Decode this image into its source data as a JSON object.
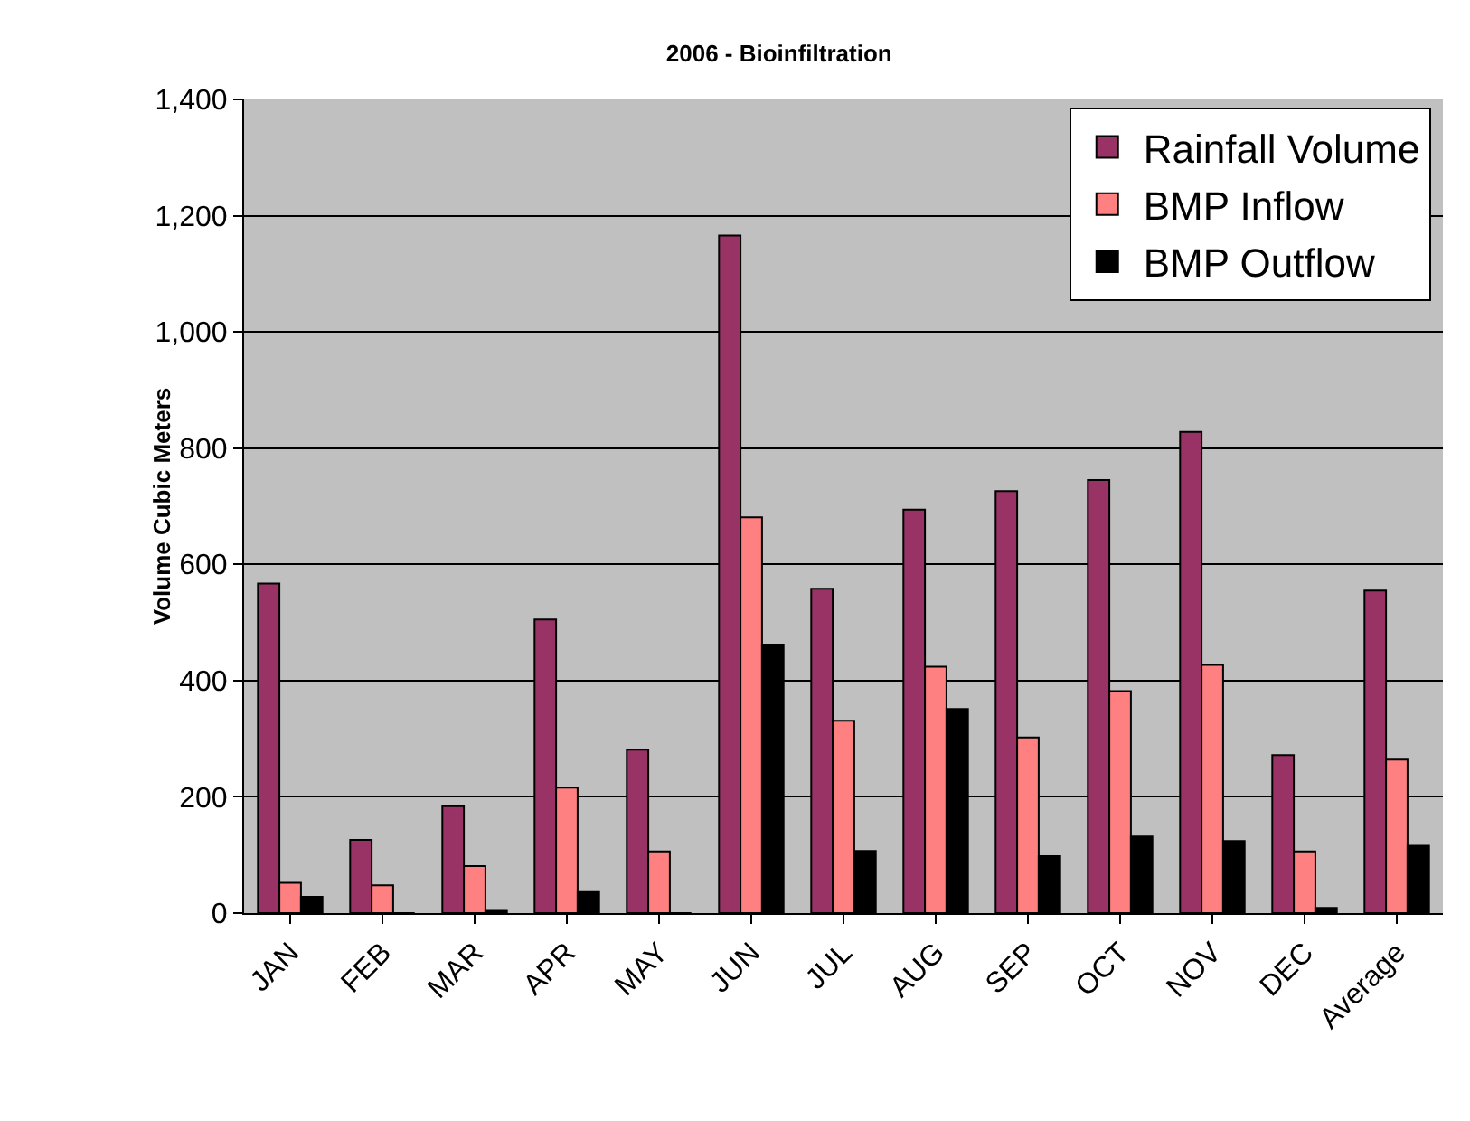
{
  "chart_data": {
    "type": "bar",
    "title": "2006 - Bioinfiltration",
    "ylabel": "Volume Cubic Meters",
    "categories": [
      "JAN",
      "FEB",
      "MAR",
      "APR",
      "MAY",
      "JUN",
      "JUL",
      "AUG",
      "SEP",
      "OCT",
      "NOV",
      "DEC",
      "Average"
    ],
    "series": [
      {
        "name": "Rainfall Volume",
        "color": "#993366",
        "values": [
          567,
          126,
          184,
          505,
          281,
          1166,
          558,
          694,
          726,
          745,
          828,
          272,
          555
        ]
      },
      {
        "name": "BMP Inflow",
        "color": "#ff8080",
        "values": [
          52,
          48,
          81,
          216,
          106,
          681,
          331,
          424,
          302,
          382,
          427,
          106,
          264
        ]
      },
      {
        "name": "BMP Outflow",
        "color": "#000000",
        "values": [
          28,
          0,
          4,
          36,
          0,
          462,
          107,
          351,
          98,
          132,
          124,
          9,
          116
        ]
      }
    ],
    "ylim": [
      0,
      1400
    ],
    "yticks": [
      0,
      {
        "value": 200,
        "label": "200"
      },
      {
        "value": 400,
        "label": "400"
      },
      {
        "value": 600,
        "label": "600"
      },
      {
        "value": 800,
        "label": "800"
      },
      {
        "value": 1000,
        "label": "1,000"
      },
      {
        "value": 1200,
        "label": "1,200"
      },
      {
        "value": 1400,
        "label": "1,400"
      }
    ],
    "grid": "y",
    "legend": "top right"
  }
}
